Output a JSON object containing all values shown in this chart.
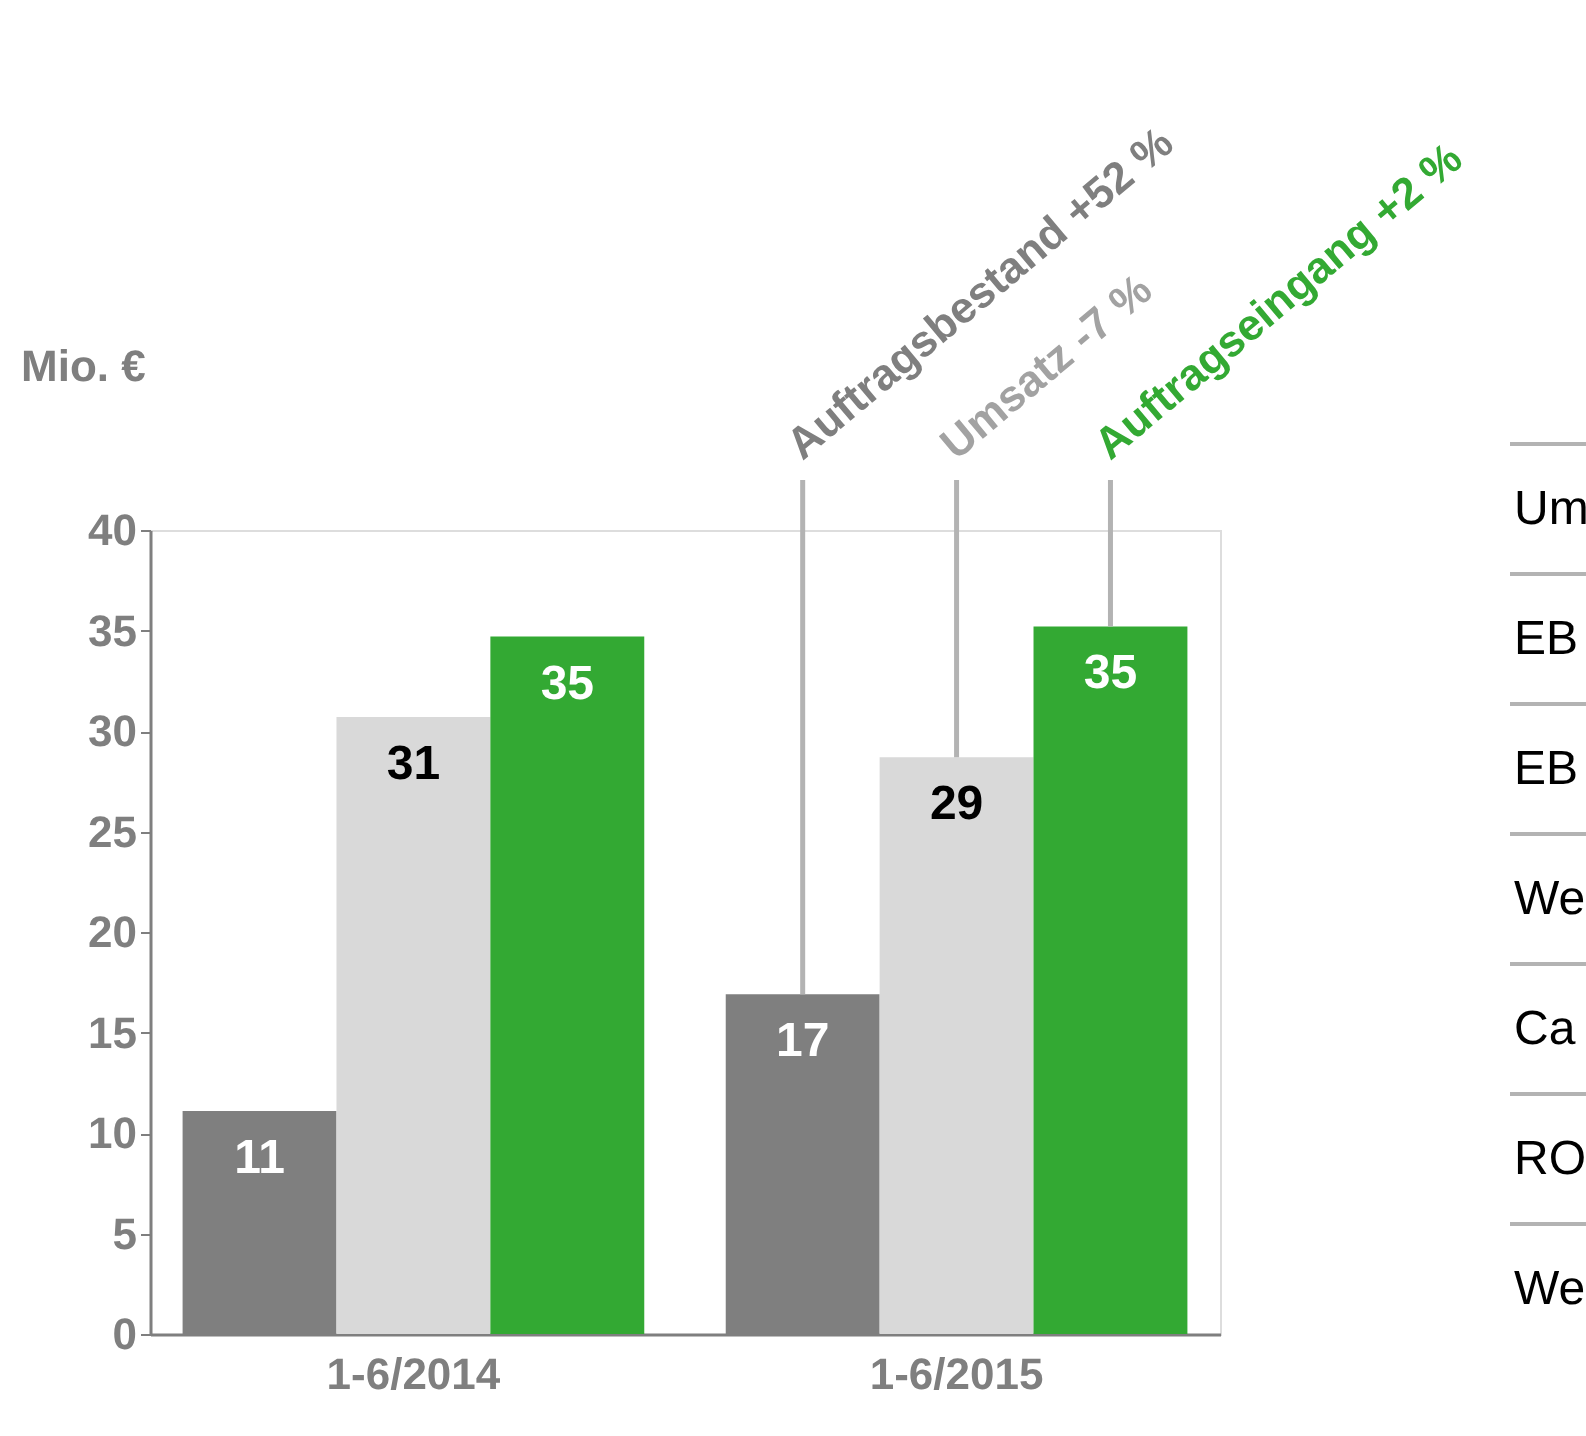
{
  "chart_data": {
    "type": "bar",
    "ylabel": "Mio. €",
    "categories": [
      "1-6/2014",
      "1-6/2015"
    ],
    "series": [
      {
        "name": "Auftragsbestand +52 %",
        "color": "#7f7f7f",
        "values": [
          11.1,
          16.9
        ],
        "value_labels": [
          "11",
          "17"
        ]
      },
      {
        "name": "Umsatz -7 %",
        "color": "#d9d9d9",
        "values": [
          30.7,
          28.7
        ],
        "value_labels": [
          "31",
          "29"
        ]
      },
      {
        "name": "Auftragseingang +2 %",
        "color": "#33a933",
        "values": [
          34.7,
          35.2
        ],
        "value_labels": [
          "35",
          "35"
        ]
      }
    ],
    "ylim": [
      0,
      40
    ],
    "yticks": [
      0,
      5,
      10,
      15,
      20,
      25,
      30,
      35,
      40
    ],
    "grid": false,
    "legend": false,
    "annotations": [
      "Um",
      "EB",
      "EB",
      "We",
      "Ca",
      "RO",
      "We"
    ]
  }
}
